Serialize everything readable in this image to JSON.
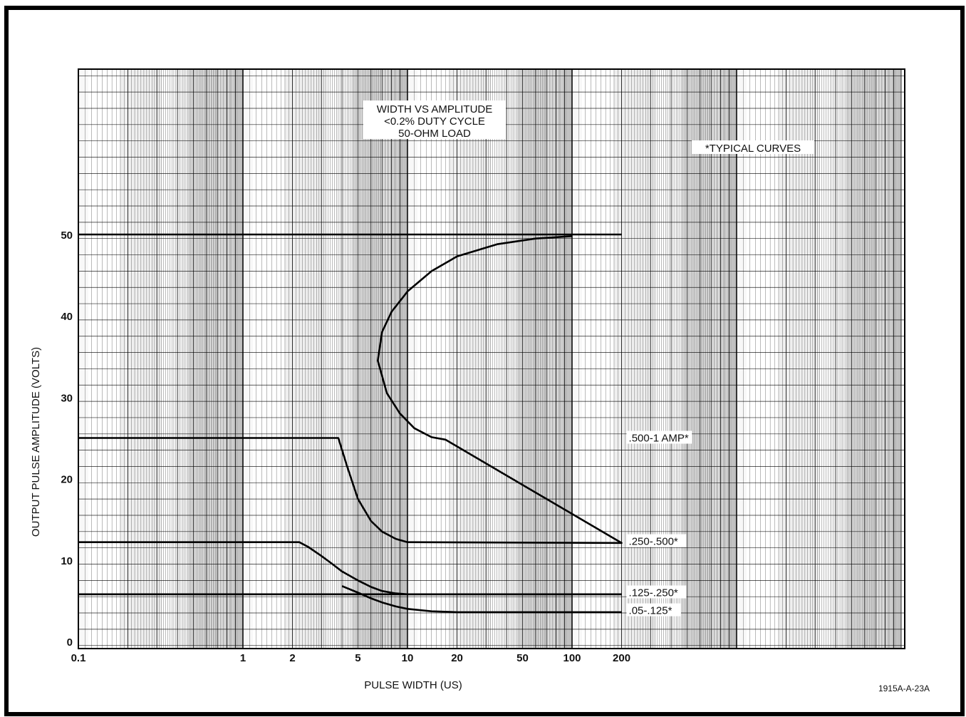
{
  "figure_id": "1915A-A-23A",
  "chart_data": {
    "type": "line",
    "title_lines": [
      "WIDTH VS AMPLITUDE",
      "<0.2% DUTY CYCLE",
      "50-OHM LOAD"
    ],
    "note": "*TYPICAL CURVES",
    "xlabel": "PULSE WIDTH (US)",
    "ylabel": "OUTPUT PULSE AMPLITUDE (VOLTS)",
    "x_scale": "log",
    "xlim": [
      0.1,
      5000
    ],
    "ylim": [
      0,
      70
    ],
    "x_ticks": [
      {
        "value": 0.1,
        "label": "0.1"
      },
      {
        "value": 1,
        "label": "1"
      },
      {
        "value": 2,
        "label": "2"
      },
      {
        "value": 5,
        "label": "5"
      },
      {
        "value": 10,
        "label": "10"
      },
      {
        "value": 20,
        "label": "20"
      },
      {
        "value": 50,
        "label": "50"
      },
      {
        "value": 100,
        "label": "100"
      },
      {
        "value": 200,
        "label": "200"
      }
    ],
    "y_ticks": [
      {
        "value": 0,
        "label": "0"
      },
      {
        "value": 10,
        "label": "10"
      },
      {
        "value": 20,
        "label": "20"
      },
      {
        "value": 30,
        "label": "30"
      },
      {
        "value": 40,
        "label": "40"
      },
      {
        "value": 50,
        "label": "50"
      }
    ],
    "reference_line": {
      "y": 50,
      "x_range": [
        0.1,
        200
      ]
    },
    "series": [
      {
        "name": ".500-1 AMP*",
        "points": [
          [
            0.1,
            25
          ],
          [
            2.5,
            25
          ],
          [
            3.8,
            25
          ],
          [
            4.3,
            21.5
          ],
          [
            5.0,
            17.5
          ],
          [
            6.0,
            14.8
          ],
          [
            7.0,
            13.5
          ],
          [
            8.5,
            12.6
          ],
          [
            10,
            12.2
          ],
          [
            200,
            12.1
          ],
          [
            17,
            24.8
          ],
          [
            14,
            25.1
          ],
          [
            11,
            26.2
          ],
          [
            9,
            28
          ],
          [
            7.5,
            30.5
          ],
          [
            6.6,
            34.5
          ],
          [
            7.0,
            38
          ],
          [
            8.0,
            40.5
          ],
          [
            10,
            43
          ],
          [
            14,
            45.5
          ],
          [
            20,
            47.3
          ],
          [
            35,
            48.8
          ],
          [
            60,
            49.5
          ],
          [
            100,
            49.8
          ]
        ]
      },
      {
        "name": ".250-.500*",
        "points": [
          [
            0.1,
            12.2
          ],
          [
            2.2,
            12.2
          ],
          [
            2.5,
            11.6
          ],
          [
            3.0,
            10.5
          ],
          [
            3.5,
            9.5
          ],
          [
            4.0,
            8.6
          ],
          [
            5.0,
            7.5
          ],
          [
            6.0,
            6.7
          ],
          [
            7.0,
            6.2
          ],
          [
            8.5,
            5.9
          ],
          [
            10,
            5.8
          ],
          [
            200,
            5.8
          ]
        ]
      },
      {
        "name": ".125-.250*",
        "points": [
          [
            0.1,
            5.8
          ],
          [
            200,
            5.8
          ]
        ]
      },
      {
        "name": ".05-.125*",
        "points": [
          [
            4.0,
            6.8
          ],
          [
            5.0,
            6.0
          ],
          [
            6.0,
            5.3
          ],
          [
            7.0,
            4.8
          ],
          [
            8.5,
            4.3
          ],
          [
            10,
            4.0
          ],
          [
            14,
            3.7
          ],
          [
            20,
            3.6
          ],
          [
            200,
            3.6
          ]
        ]
      }
    ],
    "curve_labels": [
      {
        "text": ".500-1 AMP*",
        "y": 25.0
      },
      {
        "text": ".250-.500*",
        "y": 12.3
      },
      {
        "text": ".125-.250*",
        "y": 6.0
      },
      {
        "text": ".05-.125*",
        "y": 3.8
      }
    ],
    "grid": true,
    "legend": "none"
  }
}
